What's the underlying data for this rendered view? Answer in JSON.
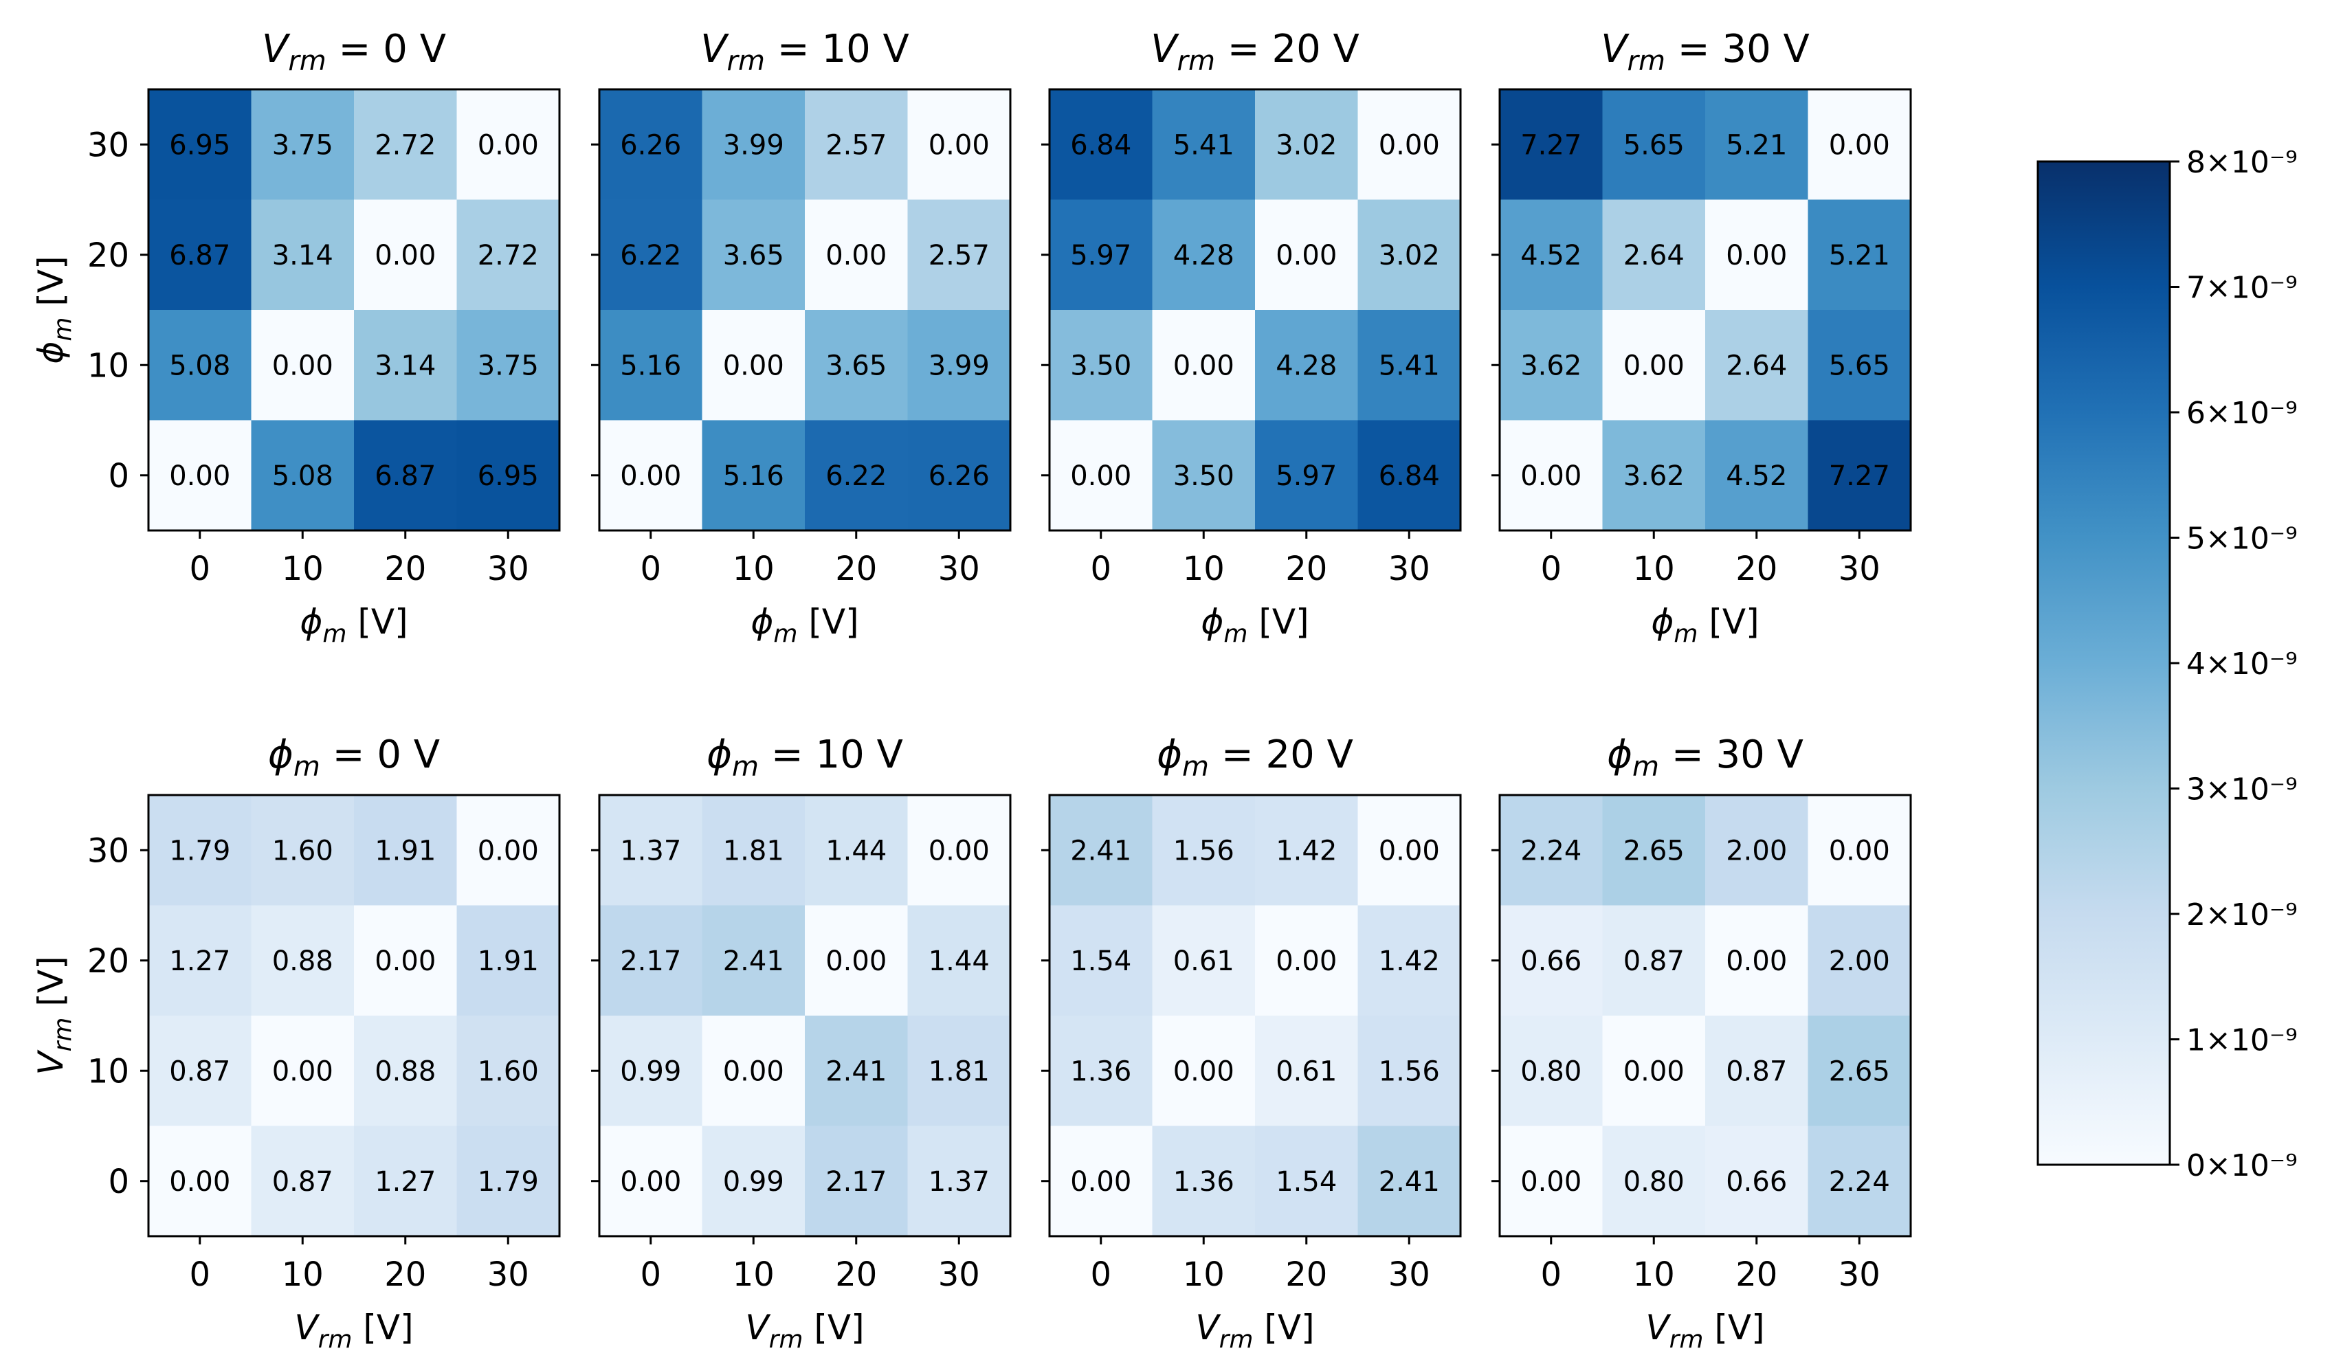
{
  "chart_data": {
    "type": "heatmap",
    "colormap": "Blues",
    "colorbar": {
      "vmin": 0,
      "vmax": 8e-09,
      "ticks": [
        {
          "value": 0,
          "label": "0×10⁻⁹"
        },
        {
          "value": 1e-09,
          "label": "1×10⁻⁹"
        },
        {
          "value": 2e-09,
          "label": "2×10⁻⁹"
        },
        {
          "value": 3e-09,
          "label": "3×10⁻⁹"
        },
        {
          "value": 4e-09,
          "label": "4×10⁻⁹"
        },
        {
          "value": 5e-09,
          "label": "5×10⁻⁹"
        },
        {
          "value": 6e-09,
          "label": "6×10⁻⁹"
        },
        {
          "value": 7e-09,
          "label": "7×10⁻⁹"
        },
        {
          "value": 8e-09,
          "label": "8×10⁻⁹"
        }
      ]
    },
    "cell_value_scale": 1e-09,
    "ticks": [
      "0",
      "10",
      "20",
      "30"
    ],
    "rows": [
      {
        "row_id": "vrm",
        "title_var": "V",
        "title_sub": "rm",
        "axis_var": "ϕ",
        "axis_sub": "m",
        "axis_unit": " [V]",
        "panels": [
          {
            "title_value": "0 V",
            "matrix": [
              [
                6.95,
                3.75,
                2.72,
                0.0
              ],
              [
                6.87,
                3.14,
                0.0,
                2.72
              ],
              [
                5.08,
                0.0,
                3.14,
                3.75
              ],
              [
                0.0,
                5.08,
                6.87,
                6.95
              ]
            ]
          },
          {
            "title_value": "10 V",
            "matrix": [
              [
                6.26,
                3.99,
                2.57,
                0.0
              ],
              [
                6.22,
                3.65,
                0.0,
                2.57
              ],
              [
                5.16,
                0.0,
                3.65,
                3.99
              ],
              [
                0.0,
                5.16,
                6.22,
                6.26
              ]
            ]
          },
          {
            "title_value": "20 V",
            "matrix": [
              [
                6.84,
                5.41,
                3.02,
                0.0
              ],
              [
                5.97,
                4.28,
                0.0,
                3.02
              ],
              [
                3.5,
                0.0,
                4.28,
                5.41
              ],
              [
                0.0,
                3.5,
                5.97,
                6.84
              ]
            ]
          },
          {
            "title_value": "30 V",
            "matrix": [
              [
                7.27,
                5.65,
                5.21,
                0.0
              ],
              [
                4.52,
                2.64,
                0.0,
                5.21
              ],
              [
                3.62,
                0.0,
                2.64,
                5.65
              ],
              [
                0.0,
                3.62,
                4.52,
                7.27
              ]
            ]
          }
        ]
      },
      {
        "row_id": "phim",
        "title_var": "ϕ",
        "title_sub": "m",
        "axis_var": "V",
        "axis_sub": "rm",
        "axis_unit": " [V]",
        "panels": [
          {
            "title_value": "0 V",
            "matrix": [
              [
                1.79,
                1.6,
                1.91,
                0.0
              ],
              [
                1.27,
                0.88,
                0.0,
                1.91
              ],
              [
                0.87,
                0.0,
                0.88,
                1.6
              ],
              [
                0.0,
                0.87,
                1.27,
                1.79
              ]
            ]
          },
          {
            "title_value": "10 V",
            "matrix": [
              [
                1.37,
                1.81,
                1.44,
                0.0
              ],
              [
                2.17,
                2.41,
                0.0,
                1.44
              ],
              [
                0.99,
                0.0,
                2.41,
                1.81
              ],
              [
                0.0,
                0.99,
                2.17,
                1.37
              ]
            ]
          },
          {
            "title_value": "20 V",
            "matrix": [
              [
                2.41,
                1.56,
                1.42,
                0.0
              ],
              [
                1.54,
                0.61,
                0.0,
                1.42
              ],
              [
                1.36,
                0.0,
                0.61,
                1.56
              ],
              [
                0.0,
                1.36,
                1.54,
                2.41
              ]
            ]
          },
          {
            "title_value": "30 V",
            "matrix": [
              [
                2.24,
                2.65,
                2.0,
                0.0
              ],
              [
                0.66,
                0.87,
                0.0,
                2.0
              ],
              [
                0.8,
                0.0,
                0.87,
                2.65
              ],
              [
                0.0,
                0.8,
                0.66,
                2.24
              ]
            ]
          }
        ]
      }
    ]
  }
}
